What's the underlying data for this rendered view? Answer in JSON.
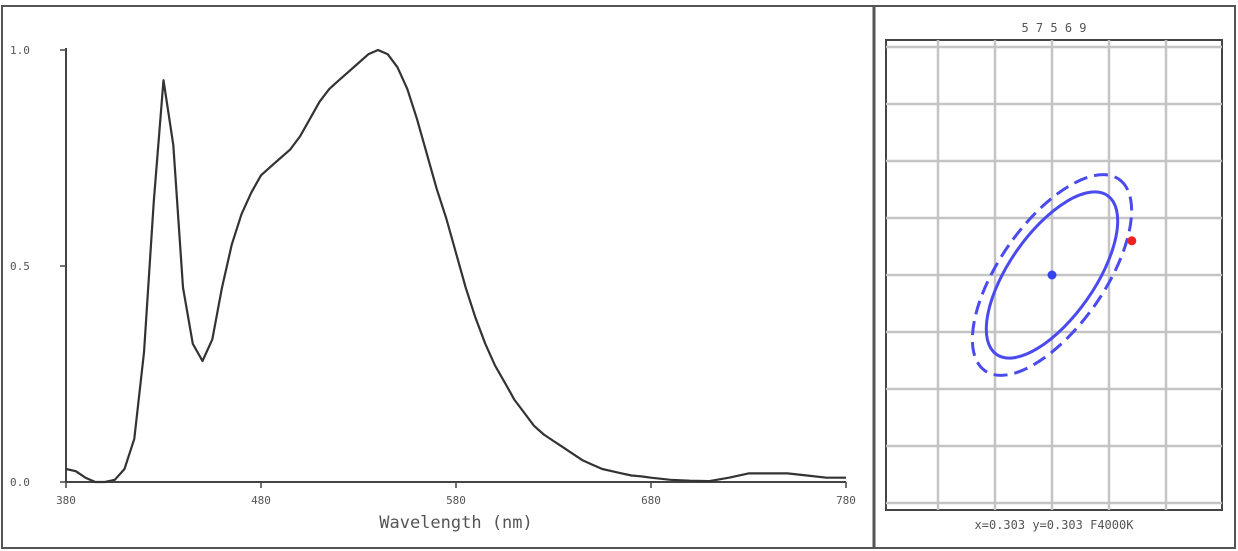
{
  "chart_data": [
    {
      "type": "line",
      "title": "",
      "xlabel": "Wavelength (nm)",
      "ylabel": "",
      "xlim": [
        380,
        780
      ],
      "ylim": [
        0,
        1.0
      ],
      "x_ticks": [
        "380",
        "480",
        "580",
        "680",
        "780"
      ],
      "y_ticks": [
        "0.0",
        "0.5",
        "1.0"
      ],
      "grid": false,
      "series": [
        {
          "color": "#333333",
          "x": [
            380,
            385,
            390,
            395,
            400,
            405,
            410,
            415,
            420,
            425,
            430,
            435,
            440,
            445,
            450,
            455,
            460,
            465,
            470,
            475,
            480,
            485,
            490,
            495,
            500,
            505,
            510,
            515,
            520,
            525,
            530,
            535,
            540,
            545,
            550,
            555,
            560,
            565,
            570,
            575,
            580,
            585,
            590,
            595,
            600,
            605,
            610,
            615,
            620,
            625,
            630,
            635,
            640,
            645,
            650,
            655,
            660,
            665,
            670,
            675,
            680,
            690,
            700,
            710,
            720,
            730,
            740,
            750,
            760,
            770,
            780
          ],
          "y": [
            0.03,
            0.025,
            0.01,
            0.0,
            0.0,
            0.005,
            0.03,
            0.1,
            0.3,
            0.65,
            0.93,
            0.78,
            0.45,
            0.32,
            0.28,
            0.33,
            0.45,
            0.55,
            0.62,
            0.67,
            0.71,
            0.73,
            0.75,
            0.77,
            0.8,
            0.84,
            0.88,
            0.91,
            0.93,
            0.95,
            0.97,
            0.99,
            1.0,
            0.99,
            0.96,
            0.91,
            0.84,
            0.76,
            0.68,
            0.61,
            0.53,
            0.45,
            0.38,
            0.32,
            0.27,
            0.23,
            0.19,
            0.16,
            0.13,
            0.11,
            0.095,
            0.08,
            0.065,
            0.05,
            0.04,
            0.03,
            0.025,
            0.02,
            0.015,
            0.013,
            0.01,
            0.005,
            0.003,
            0.002,
            0.01,
            0.02,
            0.02,
            0.02,
            0.015,
            0.01,
            0.01
          ]
        }
      ]
    },
    {
      "type": "scatter",
      "title": "5 7 5 6 9",
      "caption": "x=0.303 y=0.303 F4000K",
      "grid": true,
      "ellipses": [
        {
          "style": "solid",
          "color": "#4a4aee",
          "cx": 0,
          "cy": 0,
          "rx": 1.7,
          "ry": 0.75,
          "angle_deg": -55
        },
        {
          "style": "dashed",
          "color": "#4a4aee",
          "cx": 0,
          "cy": 0,
          "rx": 2.05,
          "ry": 0.92,
          "angle_deg": -55
        }
      ],
      "points": [
        {
          "name": "target",
          "color": "#3344ee",
          "x": 0,
          "y": 0
        },
        {
          "name": "measured",
          "color": "#ee2222",
          "x": 1.4,
          "y": 0.6
        }
      ]
    }
  ]
}
